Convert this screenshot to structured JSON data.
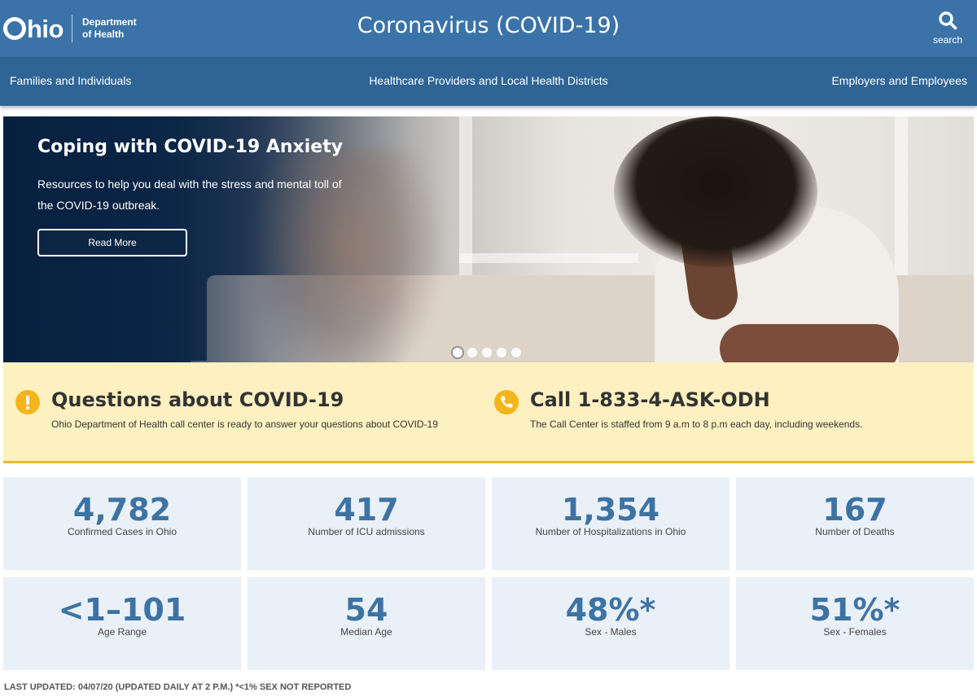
{
  "header": {
    "logo_word": "hio",
    "logo_dept_line1": "Department",
    "logo_dept_line2": "of Health",
    "title": "Coronavirus (COVID-19)",
    "search_label": "search"
  },
  "nav": {
    "items": [
      {
        "label": "Families and Individuals"
      },
      {
        "label": "Healthcare Providers and Local Health Districts"
      },
      {
        "label": "Employers and Employees"
      }
    ]
  },
  "hero": {
    "title": "Coping with COVID-19 Anxiety",
    "description": "Resources to help you deal with the stress and mental toll of the COVID-19 outbreak.",
    "button_label": "Read More",
    "slides_count": 5,
    "active_slide": 1
  },
  "info": {
    "questions": {
      "icon": "exclamation-icon",
      "title": "Questions about COVID-19",
      "text": "Ohio Department of Health call center is ready to answer your questions about COVID-19"
    },
    "call": {
      "icon": "phone-icon",
      "title": "Call 1-833-4-ASK-ODH",
      "text": "The Call Center is staffed from 9 a.m to 8 p.m each day, including weekends."
    }
  },
  "stats": [
    {
      "value": "4,782",
      "label": "Confirmed Cases in Ohio"
    },
    {
      "value": "417",
      "label": "Number of ICU admissions"
    },
    {
      "value": "1,354",
      "label": "Number of Hospitalizations in Ohio"
    },
    {
      "value": "167",
      "label": "Number of Deaths"
    },
    {
      "value": "<1–101",
      "label": "Age Range"
    },
    {
      "value": "54",
      "label": "Median Age"
    },
    {
      "value": "48%*",
      "label": "Sex - Males"
    },
    {
      "value": "51%*",
      "label": "Sex - Females"
    }
  ],
  "footnote": "LAST UPDATED: 04/07/20 (UPDATED DAILY AT 2 P.M.) *<1% SEX NOT REPORTED",
  "colors": {
    "header_bg": "#3b73a8",
    "nav_bg": "#2f6496",
    "accent_yellow": "#f3b51b",
    "stat_value": "#3d73a3",
    "stat_card_bg": "#e9f0f7",
    "info_band_bg": "#fdf0c1"
  }
}
